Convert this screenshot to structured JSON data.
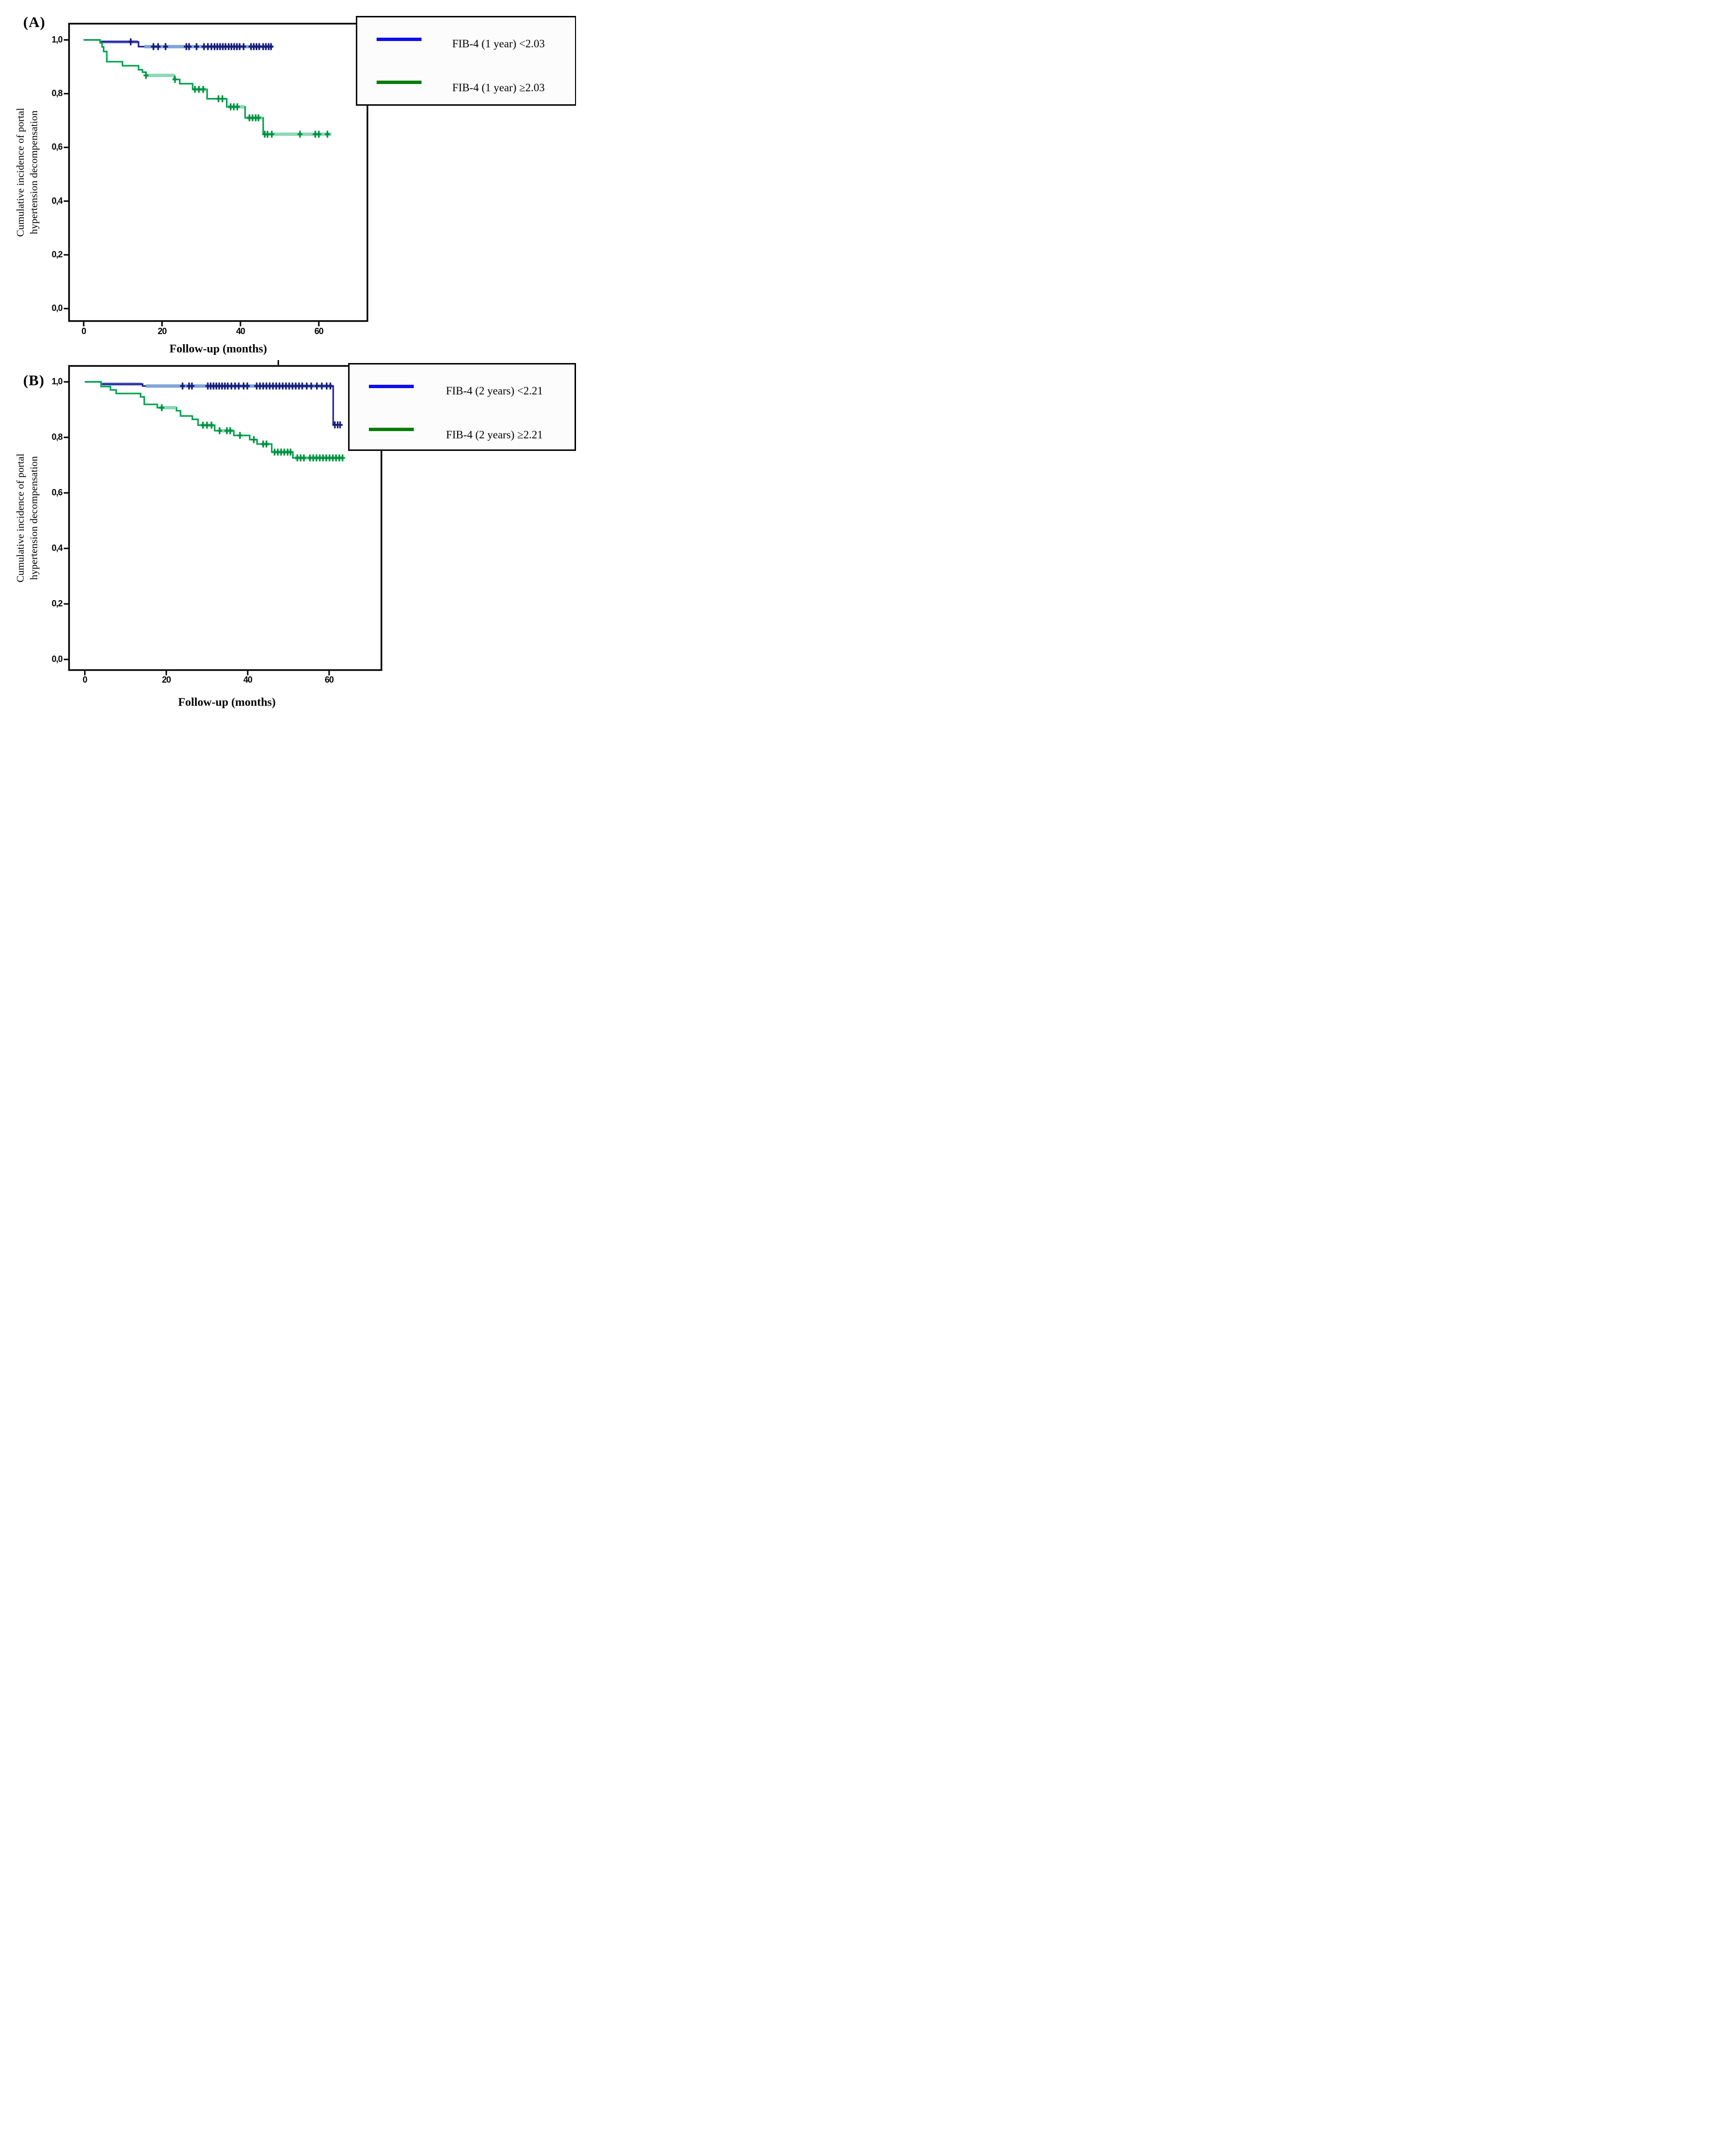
{
  "figure": {
    "panel_a_label": "(A)",
    "panel_b_label": "(B)",
    "y_axis_label_line1": "Cumulative incidence of portal",
    "y_axis_label_line2": "hypertension decompensation",
    "x_axis_label_a": "Follow-up (months)",
    "x_axis_label_b": "Follow-up (months)"
  },
  "chart_data": [
    {
      "panel": "A",
      "type": "line",
      "subtype": "kaplan-meier-step",
      "title": "",
      "xlabel": "Follow-up (months)",
      "ylabel": "Cumulative incidence of portal hypertension decompensation",
      "x_axis": {
        "ticks": [
          0,
          20,
          40,
          60
        ],
        "tick_labels": [
          "0",
          "20",
          "40",
          "60"
        ],
        "range_months": [
          -3.7,
          72.5
        ]
      },
      "y_axis": {
        "ticks": [
          1.0,
          0.8,
          0.6,
          0.4,
          0.2,
          0.0
        ],
        "tick_labels": [
          "1,0",
          "0,8",
          "0,6",
          "0,4",
          "0,2",
          "0,0"
        ],
        "range": [
          -0.047,
          1.061
        ]
      },
      "grid": false,
      "legend": {
        "position": "top-right",
        "entries": [
          {
            "label": "FIB-4 (1 year) <2.03",
            "color": "#0d0df0"
          },
          {
            "label": "FIB-4 (1 year) ≥2.03",
            "color": "#067d06"
          }
        ]
      },
      "series": [
        {
          "name": "FIB-4 (1 year) <2.03",
          "color": "#1e2190",
          "censor_color": "#181b78",
          "steps": [
            [
              0,
              1.0
            ],
            [
              4.2,
              0.993
            ],
            [
              14.0,
              0.975
            ]
          ],
          "end_month": 48.2,
          "censored_overlays": [
            {
              "from": 4.5,
              "to": 13.8,
              "value": 0.993,
              "color": "#9aa2de",
              "layer": "under"
            },
            {
              "from": 15.5,
              "to": 48.2,
              "value": 0.975,
              "color": "#7fa6d8",
              "layer": "over"
            }
          ],
          "censor_marks": [
            [
              12,
              0.993
            ],
            [
              17.8,
              0.975
            ],
            [
              19,
              0.975
            ],
            [
              20.9,
              0.975
            ],
            [
              26.2,
              0.975
            ],
            [
              26.9,
              0.975
            ],
            [
              28.8,
              0.975
            ],
            [
              30.7,
              0.975
            ],
            [
              31.7,
              0.975
            ],
            [
              32.6,
              0.975
            ],
            [
              33.4,
              0.975
            ],
            [
              34.1,
              0.975
            ],
            [
              34.8,
              0.975
            ],
            [
              35.5,
              0.975
            ],
            [
              36.2,
              0.975
            ],
            [
              37,
              0.975
            ],
            [
              37.7,
              0.975
            ],
            [
              38.4,
              0.975
            ],
            [
              39.1,
              0.975
            ],
            [
              39.8,
              0.975
            ],
            [
              40.8,
              0.975
            ],
            [
              42.7,
              0.975
            ],
            [
              43.4,
              0.975
            ],
            [
              44.1,
              0.975
            ],
            [
              44.8,
              0.975
            ],
            [
              45.8,
              0.975
            ],
            [
              46.5,
              0.975
            ],
            [
              47.2,
              0.975
            ],
            [
              47.8,
              0.975
            ]
          ]
        },
        {
          "name": "FIB-4 (1 year) ≥2.03",
          "color": "#00a24d",
          "censor_color": "#00913f",
          "steps": [
            [
              0,
              1.0
            ],
            [
              4.2,
              0.989
            ],
            [
              4.7,
              0.974
            ],
            [
              5.1,
              0.957
            ],
            [
              5.9,
              0.919
            ],
            [
              9.9,
              0.904
            ],
            [
              14.0,
              0.889
            ],
            [
              15.0,
              0.88
            ],
            [
              15.9,
              0.868
            ],
            [
              23.1,
              0.853
            ],
            [
              24.5,
              0.837
            ],
            [
              27.8,
              0.816
            ],
            [
              31.5,
              0.781
            ],
            [
              36.5,
              0.751
            ],
            [
              41.2,
              0.71
            ],
            [
              45.8,
              0.649
            ]
          ],
          "end_month": 63.2,
          "censored_overlays": [
            {
              "from": 15.9,
              "to": 23.1,
              "value": 0.868,
              "color": "#8bd8b8",
              "layer": "over"
            },
            {
              "from": 28.0,
              "to": 31.3,
              "value": 0.816,
              "color": "#8bd8b8",
              "layer": "over"
            },
            {
              "from": 36.8,
              "to": 41.0,
              "value": 0.751,
              "color": "#8bd8b8",
              "layer": "over"
            },
            {
              "from": 41.6,
              "to": 45.6,
              "value": 0.71,
              "color": "#8bd8b8",
              "layer": "over"
            },
            {
              "from": 45.9,
              "to": 63.2,
              "value": 0.649,
              "color": "#8bd8b8",
              "layer": "over"
            }
          ],
          "censor_marks": [
            [
              15.9,
              0.868
            ],
            [
              23.3,
              0.853
            ],
            [
              28.4,
              0.816
            ],
            [
              29.4,
              0.816
            ],
            [
              30.5,
              0.816
            ],
            [
              34.4,
              0.781
            ],
            [
              35.4,
              0.781
            ],
            [
              37.5,
              0.751
            ],
            [
              38.3,
              0.751
            ],
            [
              39.2,
              0.751
            ],
            [
              42.3,
              0.71
            ],
            [
              43.1,
              0.71
            ],
            [
              43.9,
              0.71
            ],
            [
              44.6,
              0.71
            ],
            [
              46.2,
              0.649
            ],
            [
              46.9,
              0.649
            ],
            [
              48,
              0.649
            ],
            [
              55.2,
              0.649
            ],
            [
              59.1,
              0.649
            ],
            [
              60,
              0.649
            ],
            [
              62.2,
              0.649
            ]
          ]
        }
      ]
    },
    {
      "panel": "B",
      "type": "line",
      "subtype": "kaplan-meier-step",
      "title": "",
      "xlabel": "Follow-up (months)",
      "ylabel": "Cumulative incidence of portal hypertension decompensation",
      "x_axis": {
        "ticks": [
          0,
          20,
          40,
          60
        ],
        "tick_labels": [
          "0",
          "20",
          "40",
          "60"
        ],
        "range_months": [
          -3.9,
          72.8
        ]
      },
      "y_axis": {
        "ticks": [
          1.0,
          0.8,
          0.6,
          0.4,
          0.2,
          0.0
        ],
        "tick_labels": [
          "1,0",
          "0,8",
          "0,6",
          "0,4",
          "0,2",
          "0,0"
        ],
        "range": [
          -0.039,
          1.057
        ]
      },
      "grid": false,
      "legend": {
        "position": "top-right",
        "entries": [
          {
            "label": "FIB-4 (2 years) <2.21",
            "color": "#0d0df0"
          },
          {
            "label": "FIB-4 (2 years) ≥2.21",
            "color": "#067d06"
          }
        ]
      },
      "series": [
        {
          "name": "FIB-4 (2 years) <2.21",
          "color": "#1e2190",
          "censor_color": "#181b78",
          "steps": [
            [
              0,
              1.0
            ],
            [
              4.0,
              0.992
            ],
            [
              14.2,
              0.985
            ],
            [
              61.0,
              0.845
            ]
          ],
          "end_month": 63.3,
          "censored_overlays": [
            {
              "from": 4.3,
              "to": 14.0,
              "value": 0.992,
              "color": "#9aa2de",
              "layer": "under"
            },
            {
              "from": 15.0,
              "to": 60.8,
              "value": 0.985,
              "color": "#7fa6d8",
              "layer": "over"
            }
          ],
          "censor_marks": [
            [
              24,
              0.985
            ],
            [
              25.6,
              0.985
            ],
            [
              26.3,
              0.985
            ],
            [
              30.2,
              0.985
            ],
            [
              30.9,
              0.985
            ],
            [
              31.6,
              0.985
            ],
            [
              32.3,
              0.985
            ],
            [
              33,
              0.985
            ],
            [
              33.7,
              0.985
            ],
            [
              34.4,
              0.985
            ],
            [
              35.1,
              0.985
            ],
            [
              36,
              0.985
            ],
            [
              36.9,
              0.985
            ],
            [
              37.8,
              0.985
            ],
            [
              39,
              0.985
            ],
            [
              39.9,
              0.985
            ],
            [
              42.2,
              0.985
            ],
            [
              43,
              0.985
            ],
            [
              43.8,
              0.985
            ],
            [
              44.6,
              0.985
            ],
            [
              45.4,
              0.985
            ],
            [
              46.2,
              0.985
            ],
            [
              47,
              0.985
            ],
            [
              47.8,
              0.985
            ],
            [
              48.6,
              0.985
            ],
            [
              49.4,
              0.985
            ],
            [
              50.2,
              0.985
            ],
            [
              51,
              0.985
            ],
            [
              51.8,
              0.985
            ],
            [
              52.6,
              0.985
            ],
            [
              53.4,
              0.985
            ],
            [
              54.5,
              0.985
            ],
            [
              55.6,
              0.985
            ],
            [
              57,
              0.985
            ],
            [
              58.2,
              0.985
            ],
            [
              59.4,
              0.985
            ],
            [
              60.3,
              0.985
            ],
            [
              61.4,
              0.845
            ],
            [
              62.1,
              0.845
            ],
            [
              62.7,
              0.845
            ]
          ]
        },
        {
          "name": "FIB-4 (2 years) ≥2.21",
          "color": "#00a24d",
          "censor_color": "#00913f",
          "steps": [
            [
              0,
              1.0
            ],
            [
              4.0,
              0.983
            ],
            [
              6.3,
              0.971
            ],
            [
              7.7,
              0.958
            ],
            [
              13.7,
              0.946
            ],
            [
              14.6,
              0.919
            ],
            [
              17.8,
              0.907
            ],
            [
              22.5,
              0.896
            ],
            [
              23.5,
              0.877
            ],
            [
              26.4,
              0.865
            ],
            [
              27.8,
              0.844
            ],
            [
              31.9,
              0.824
            ],
            [
              36.6,
              0.807
            ],
            [
              40.5,
              0.792
            ],
            [
              42.3,
              0.776
            ],
            [
              45.9,
              0.747
            ],
            [
              51.1,
              0.726
            ]
          ],
          "end_month": 63.5,
          "censored_overlays": [
            {
              "from": 18.3,
              "to": 22.4,
              "value": 0.907,
              "color": "#8bd8b8",
              "layer": "over"
            },
            {
              "from": 28.6,
              "to": 31.6,
              "value": 0.844,
              "color": "#8bd8b8",
              "layer": "over"
            },
            {
              "from": 32.9,
              "to": 36.3,
              "value": 0.824,
              "color": "#8bd8b8",
              "layer": "over"
            },
            {
              "from": 43.4,
              "to": 45.2,
              "value": 0.776,
              "color": "#8bd8b8",
              "layer": "over"
            },
            {
              "from": 46.3,
              "to": 50.9,
              "value": 0.747,
              "color": "#8bd8b8",
              "layer": "over"
            },
            {
              "from": 51.6,
              "to": 63.5,
              "value": 0.726,
              "color": "#8bd8b8",
              "layer": "over"
            }
          ],
          "censor_marks": [
            [
              18.9,
              0.907
            ],
            [
              29,
              0.844
            ],
            [
              30,
              0.844
            ],
            [
              31.1,
              0.844
            ],
            [
              33.1,
              0.824
            ],
            [
              34.9,
              0.824
            ],
            [
              35.7,
              0.824
            ],
            [
              38.1,
              0.807
            ],
            [
              41.5,
              0.792
            ],
            [
              43.8,
              0.776
            ],
            [
              44.6,
              0.776
            ],
            [
              46.6,
              0.747
            ],
            [
              47.4,
              0.747
            ],
            [
              48.2,
              0.747
            ],
            [
              49,
              0.747
            ],
            [
              49.8,
              0.747
            ],
            [
              50.5,
              0.747
            ],
            [
              52.2,
              0.726
            ],
            [
              53,
              0.726
            ],
            [
              53.8,
              0.726
            ],
            [
              55.3,
              0.726
            ],
            [
              56.1,
              0.726
            ],
            [
              56.9,
              0.726
            ],
            [
              57.7,
              0.726
            ],
            [
              58.5,
              0.726
            ],
            [
              59.3,
              0.726
            ],
            [
              60.1,
              0.726
            ],
            [
              60.9,
              0.726
            ],
            [
              61.7,
              0.726
            ],
            [
              62.5,
              0.726
            ],
            [
              63.3,
              0.726
            ]
          ]
        }
      ]
    }
  ]
}
